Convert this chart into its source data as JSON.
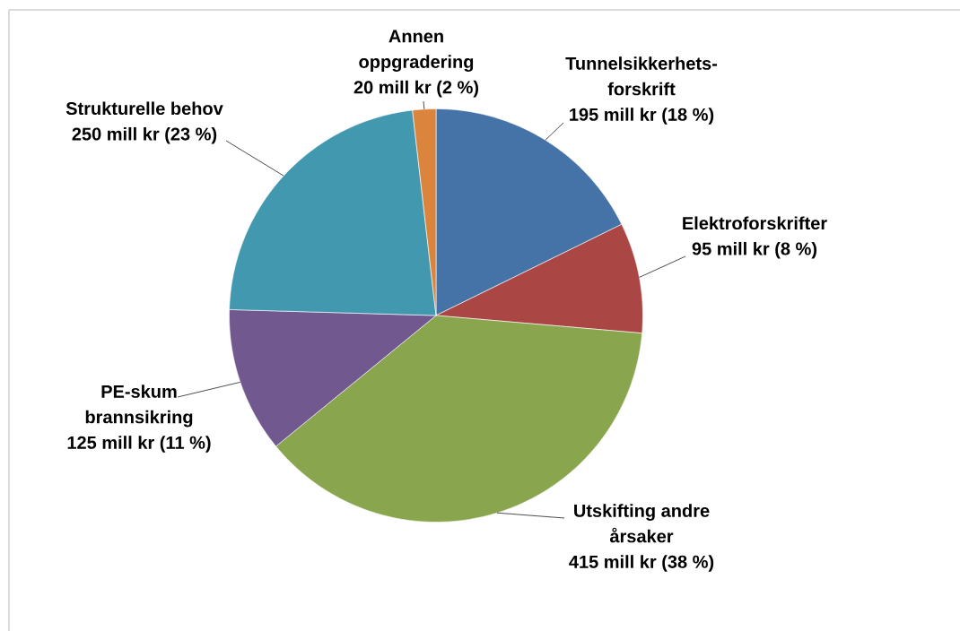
{
  "chart_data": {
    "type": "pie",
    "categories": [
      "Tunnelsikkerhets-forskrift",
      "Elektroforskrifter",
      "Utskifting andre årsaker",
      "PE-skum brannsikring",
      "Strukturelle behov",
      "Annen oppgradering"
    ],
    "values": [
      195,
      95,
      415,
      125,
      250,
      20
    ],
    "colors": [
      "#4572a7",
      "#aa4643",
      "#89a54e",
      "#71588f",
      "#4198af",
      "#db843d"
    ],
    "value_labels": [
      "195 mill kr (18 %)",
      "95 mill kr (8 %)",
      "415 mill kr (38 %)",
      "125 mill kr (11 %)",
      "250 mill kr (23 %)",
      "20 mill kr (2 %)"
    ]
  }
}
